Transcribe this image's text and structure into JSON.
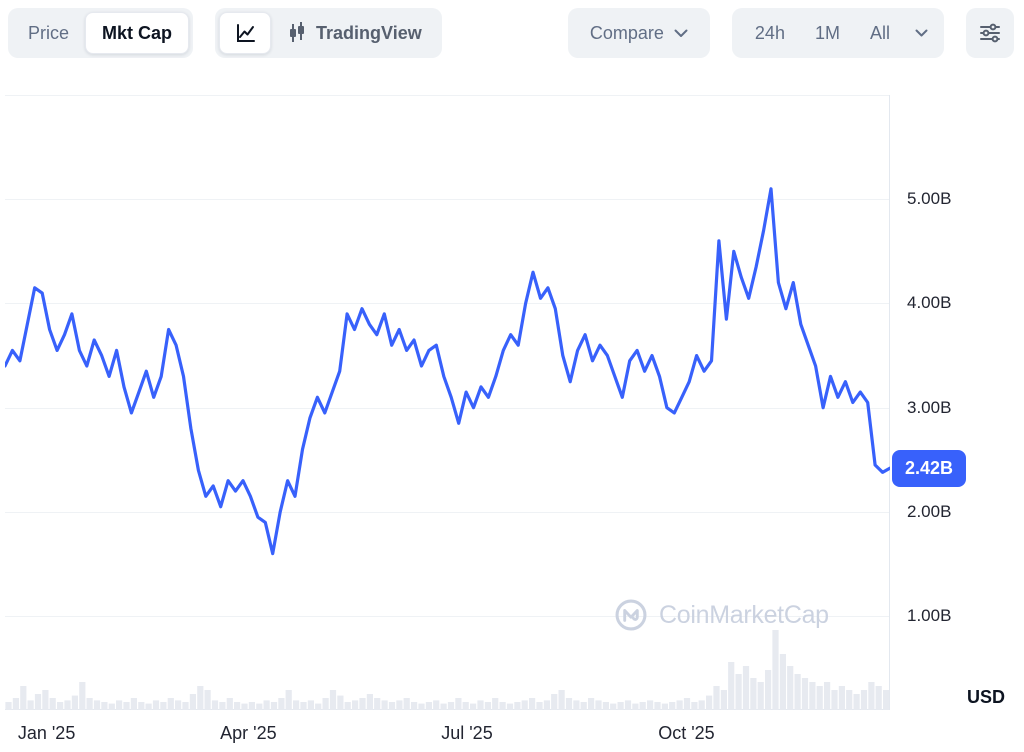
{
  "toolbar": {
    "price_label": "Price",
    "mktcap_label": "Mkt Cap",
    "tradingview_label": "TradingView",
    "compare_label": "Compare",
    "range_24h": "24h",
    "range_1m": "1M",
    "range_all": "All"
  },
  "chart": {
    "current_value_badge": "2.42B",
    "usd_label": "USD",
    "watermark": "CoinMarketCap"
  },
  "colors": {
    "line": "#3861fb",
    "badge_bg": "#3861fb",
    "grid": "#eff2f5",
    "axis_border": "#e3e8ef",
    "volume": "#e7eaf0",
    "toolbar_bg": "#eff2f5",
    "text_muted": "#616e85",
    "text_dark": "#0d1421"
  },
  "chart_data": {
    "type": "line",
    "title": "Market Cap (USD)",
    "xlabel": "",
    "ylabel": "USD",
    "unit": "B",
    "ylim": [
      0.1,
      6.0
    ],
    "grid": true,
    "legend": false,
    "current_value": 2.42,
    "y_ticks": {
      "values": [
        5,
        4,
        3,
        2,
        1
      ],
      "labels": [
        "5.00B",
        "4.00B",
        "3.00B",
        "2.00B",
        "1.00B"
      ]
    },
    "x_ticks": {
      "positions": [
        0.047,
        0.275,
        0.522,
        0.77
      ],
      "labels": [
        "Jan '25",
        "Apr '25",
        "Jul '25",
        "Oct '25"
      ]
    },
    "series": [
      {
        "name": "Market Cap",
        "values": [
          3.4,
          3.55,
          3.45,
          3.8,
          4.15,
          4.1,
          3.75,
          3.55,
          3.7,
          3.9,
          3.55,
          3.4,
          3.65,
          3.5,
          3.3,
          3.55,
          3.2,
          2.95,
          3.15,
          3.35,
          3.1,
          3.3,
          3.75,
          3.6,
          3.3,
          2.8,
          2.4,
          2.15,
          2.25,
          2.05,
          2.3,
          2.2,
          2.3,
          2.15,
          1.95,
          1.9,
          1.6,
          2.0,
          2.3,
          2.15,
          2.6,
          2.9,
          3.1,
          2.95,
          3.15,
          3.35,
          3.9,
          3.75,
          3.95,
          3.8,
          3.7,
          3.9,
          3.6,
          3.75,
          3.55,
          3.65,
          3.4,
          3.55,
          3.6,
          3.3,
          3.1,
          2.85,
          3.15,
          3.0,
          3.2,
          3.1,
          3.3,
          3.55,
          3.7,
          3.6,
          4.0,
          4.3,
          4.05,
          4.15,
          3.95,
          3.5,
          3.25,
          3.55,
          3.7,
          3.45,
          3.6,
          3.5,
          3.3,
          3.1,
          3.45,
          3.55,
          3.35,
          3.5,
          3.3,
          3.0,
          2.95,
          3.1,
          3.25,
          3.5,
          3.35,
          3.45,
          4.6,
          3.85,
          4.5,
          4.25,
          4.05,
          4.35,
          4.7,
          5.1,
          4.2,
          3.95,
          4.2,
          3.8,
          3.6,
          3.4,
          3.0,
          3.3,
          3.1,
          3.25,
          3.05,
          3.15,
          3.05,
          2.45,
          2.38,
          2.42
        ]
      }
    ],
    "volume": [
      0.1,
      0.15,
      0.3,
      0.12,
      0.2,
      0.25,
      0.15,
      0.1,
      0.12,
      0.18,
      0.35,
      0.15,
      0.12,
      0.1,
      0.08,
      0.12,
      0.1,
      0.15,
      0.1,
      0.08,
      0.12,
      0.1,
      0.15,
      0.12,
      0.1,
      0.2,
      0.3,
      0.25,
      0.12,
      0.1,
      0.15,
      0.1,
      0.08,
      0.1,
      0.08,
      0.12,
      0.1,
      0.15,
      0.25,
      0.12,
      0.1,
      0.12,
      0.08,
      0.15,
      0.25,
      0.18,
      0.1,
      0.12,
      0.15,
      0.2,
      0.15,
      0.12,
      0.1,
      0.12,
      0.15,
      0.1,
      0.08,
      0.1,
      0.12,
      0.08,
      0.1,
      0.15,
      0.1,
      0.08,
      0.12,
      0.1,
      0.15,
      0.1,
      0.08,
      0.1,
      0.12,
      0.15,
      0.1,
      0.12,
      0.2,
      0.25,
      0.15,
      0.12,
      0.1,
      0.15,
      0.12,
      0.1,
      0.08,
      0.1,
      0.12,
      0.08,
      0.1,
      0.12,
      0.1,
      0.08,
      0.1,
      0.12,
      0.15,
      0.1,
      0.12,
      0.18,
      0.3,
      0.25,
      0.6,
      0.45,
      0.55,
      0.4,
      0.35,
      0.5,
      1.0,
      0.7,
      0.55,
      0.45,
      0.4,
      0.35,
      0.3,
      0.35,
      0.25,
      0.3,
      0.25,
      0.2,
      0.25,
      0.35,
      0.3,
      0.25
    ]
  }
}
